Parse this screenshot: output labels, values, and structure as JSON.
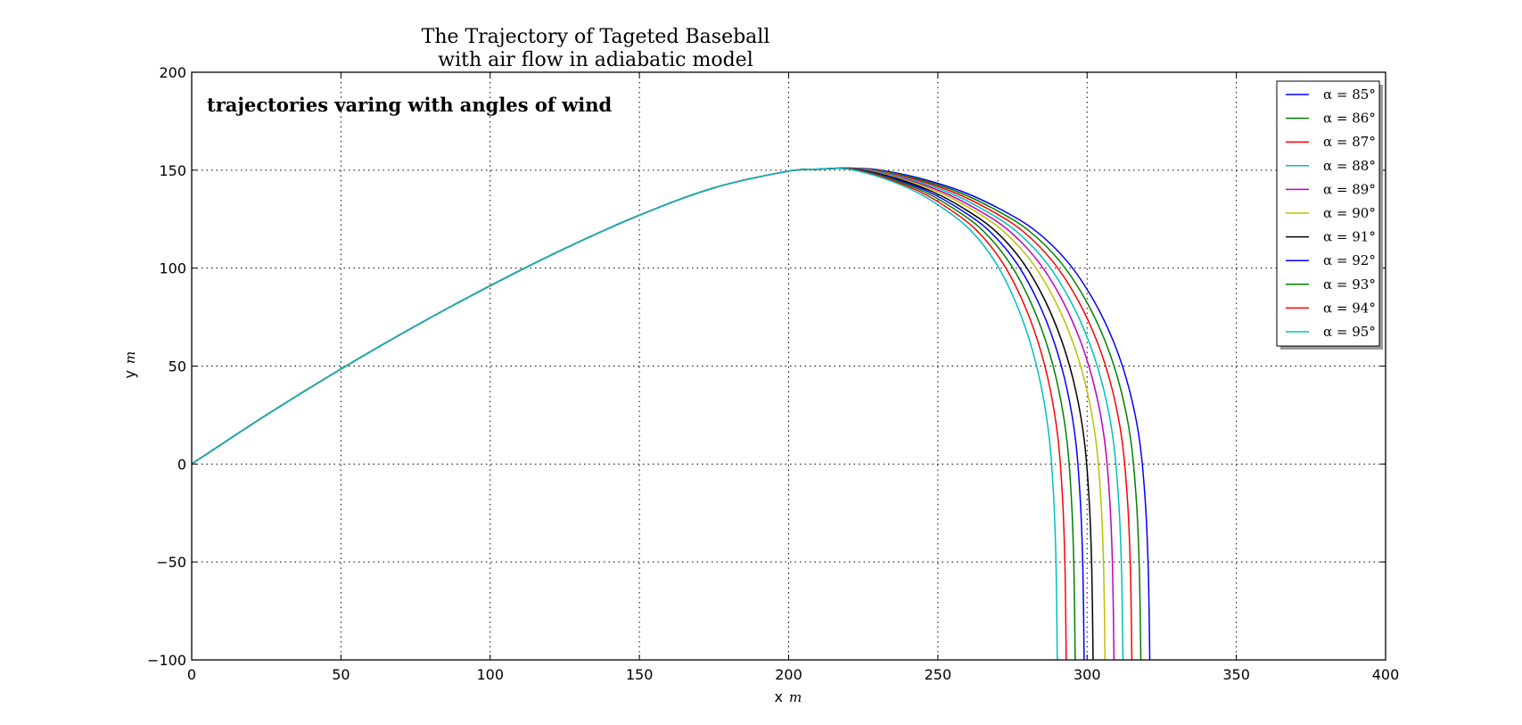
{
  "chart_data": {
    "type": "line",
    "title": "The Trajectory of Tageted Baseball",
    "subtitle": "with air flow in adiabatic model",
    "annotation": "trajectories varing with angles of wind",
    "xlabel": "x",
    "xlabel_unit": "m",
    "ylabel": "y",
    "ylabel_unit": "m",
    "xlim": [
      0,
      400
    ],
    "ylim": [
      -100,
      200
    ],
    "xticks": [
      0,
      50,
      100,
      150,
      200,
      250,
      300,
      350,
      400
    ],
    "xtick_labels": [
      "0",
      "50",
      "100",
      "150",
      "200",
      "250",
      "300",
      "350",
      "400"
    ],
    "yticks": [
      -100,
      -50,
      0,
      50,
      100,
      150,
      200
    ],
    "ytick_labels": [
      "−100",
      "−50",
      "0",
      "50",
      "100",
      "150",
      "200"
    ],
    "grid": true,
    "legend_position": "top-right",
    "shared_ascent": {
      "x": [
        0,
        25,
        50,
        75,
        100,
        125,
        150,
        175,
        200,
        210,
        217
      ],
      "y": [
        0,
        25,
        48.5,
        70.5,
        91,
        110,
        127,
        141,
        149.5,
        150.5,
        151
      ]
    },
    "series": [
      {
        "name": "α = 85°",
        "color": "#0000ff",
        "apex_x": 223,
        "landing_x": 321
      },
      {
        "name": "α = 86°",
        "color": "#008000",
        "apex_x": 222,
        "landing_x": 318
      },
      {
        "name": "α = 87°",
        "color": "#ff0000",
        "apex_x": 221,
        "landing_x": 315
      },
      {
        "name": "α = 88°",
        "color": "#00bfbf",
        "apex_x": 220,
        "landing_x": 312
      },
      {
        "name": "α = 89°",
        "color": "#bf00bf",
        "apex_x": 219,
        "landing_x": 309
      },
      {
        "name": "α = 90°",
        "color": "#bfbf00",
        "apex_x": 218.5,
        "landing_x": 306
      },
      {
        "name": "α = 91°",
        "color": "#000000",
        "apex_x": 218,
        "landing_x": 302
      },
      {
        "name": "α = 92°",
        "color": "#0000ff",
        "apex_x": 217.5,
        "landing_x": 299
      },
      {
        "name": "α = 93°",
        "color": "#008000",
        "apex_x": 217,
        "landing_x": 296
      },
      {
        "name": "α = 94°",
        "color": "#ff0000",
        "apex_x": 216.5,
        "landing_x": 293
      },
      {
        "name": "α = 95°",
        "color": "#00bfbf",
        "apex_x": 216,
        "landing_x": 290
      }
    ]
  }
}
